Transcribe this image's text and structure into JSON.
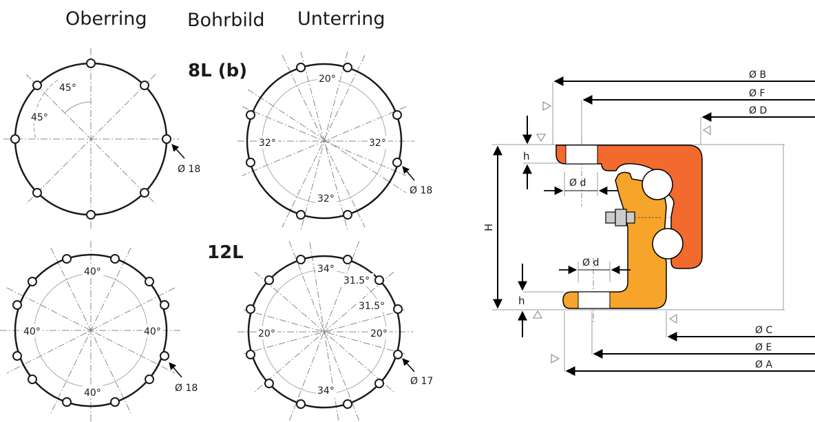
{
  "headers": {
    "oberring": "Oberring",
    "bohrbild": "Bohrbild",
    "unterring": "Unterring"
  },
  "patterns": [
    {
      "label": "8L (b)",
      "top_ring": {
        "angles": [
          "45°",
          "45°"
        ],
        "hole_dia": "Ø 18"
      },
      "bottom_ring": {
        "angles": [
          "20°",
          "32°",
          "32°",
          "32°"
        ],
        "hole_dia": "Ø 18"
      }
    },
    {
      "label": "12L",
      "top_ring": {
        "angles": [
          "40°",
          "40°",
          "40°",
          "40°"
        ],
        "hole_dia": "Ø 18"
      },
      "bottom_ring": {
        "angles": [
          "34°",
          "31.5°",
          "31.5°",
          "20°",
          "20°",
          "34°"
        ],
        "hole_dia": "Ø 17"
      }
    }
  ],
  "section": {
    "dims_top": [
      "Ø B",
      "Ø F",
      "Ø D"
    ],
    "dims_bottom": [
      "Ø C",
      "Ø E",
      "Ø A"
    ],
    "height": "H",
    "flange_top": "h",
    "flange_bottom": "h",
    "bore_top": "Ø d",
    "bore_bottom": "Ø d",
    "colors": {
      "outer_ring": "#f26a2e",
      "inner_ring": "#f7a42a",
      "outline": "#000000"
    }
  }
}
